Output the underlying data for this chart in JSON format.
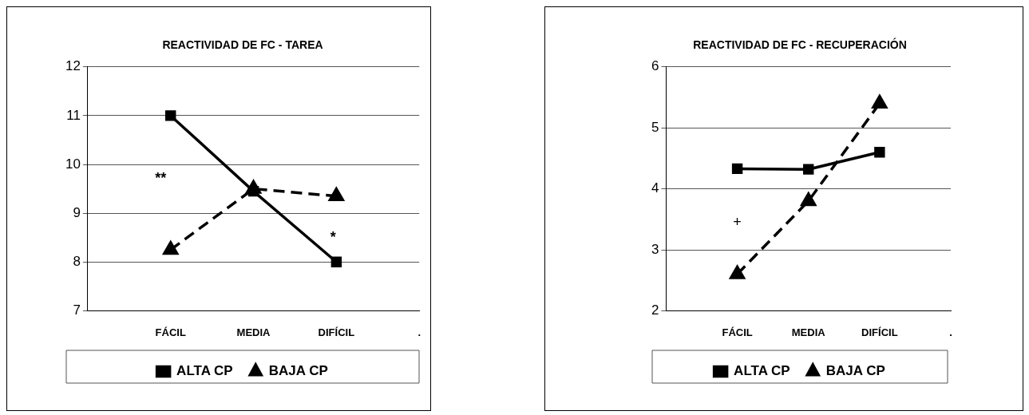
{
  "chart_data": [
    {
      "type": "line",
      "title": "REACTIVIDAD DE FC - TAREA",
      "categories": [
        null,
        "FÁCIL",
        "MEDIA",
        "DIFÍCIL",
        "."
      ],
      "series": [
        {
          "name": "ALTA CP",
          "color": "#000000",
          "marker": "square",
          "line_style": "solid",
          "values": [
            null,
            11,
            9.45,
            8,
            null
          ]
        },
        {
          "name": "BAJA CP",
          "color": "#000000",
          "marker": "triangle",
          "line_style": "dashed",
          "values": [
            null,
            8.25,
            9.5,
            9.35,
            null
          ]
        }
      ],
      "ylim": [
        7,
        12
      ],
      "yticks": [
        7,
        8,
        9,
        10,
        11,
        12
      ],
      "grid": "y",
      "legend": "bottom",
      "annotations": [
        "**",
        "*"
      ]
    },
    {
      "type": "line",
      "title": "REACTIVIDAD DE FC - RECUPERACIÓN",
      "categories": [
        null,
        "FÁCIL",
        "MEDIA",
        "DIFÍCIL",
        "."
      ],
      "series": [
        {
          "name": "ALTA CP",
          "color": "#000000",
          "marker": "square",
          "line_style": "solid",
          "values": [
            null,
            4.33,
            4.32,
            4.6,
            null
          ]
        },
        {
          "name": "BAJA CP",
          "color": "#000000",
          "marker": "triangle",
          "line_style": "dashed",
          "values": [
            null,
            2.6,
            3.8,
            5.4,
            null
          ]
        }
      ],
      "ylim": [
        2,
        6
      ],
      "yticks": [
        2,
        3,
        4,
        5,
        6
      ],
      "grid": "y",
      "legend": "bottom",
      "annotations": [
        "+"
      ]
    }
  ]
}
